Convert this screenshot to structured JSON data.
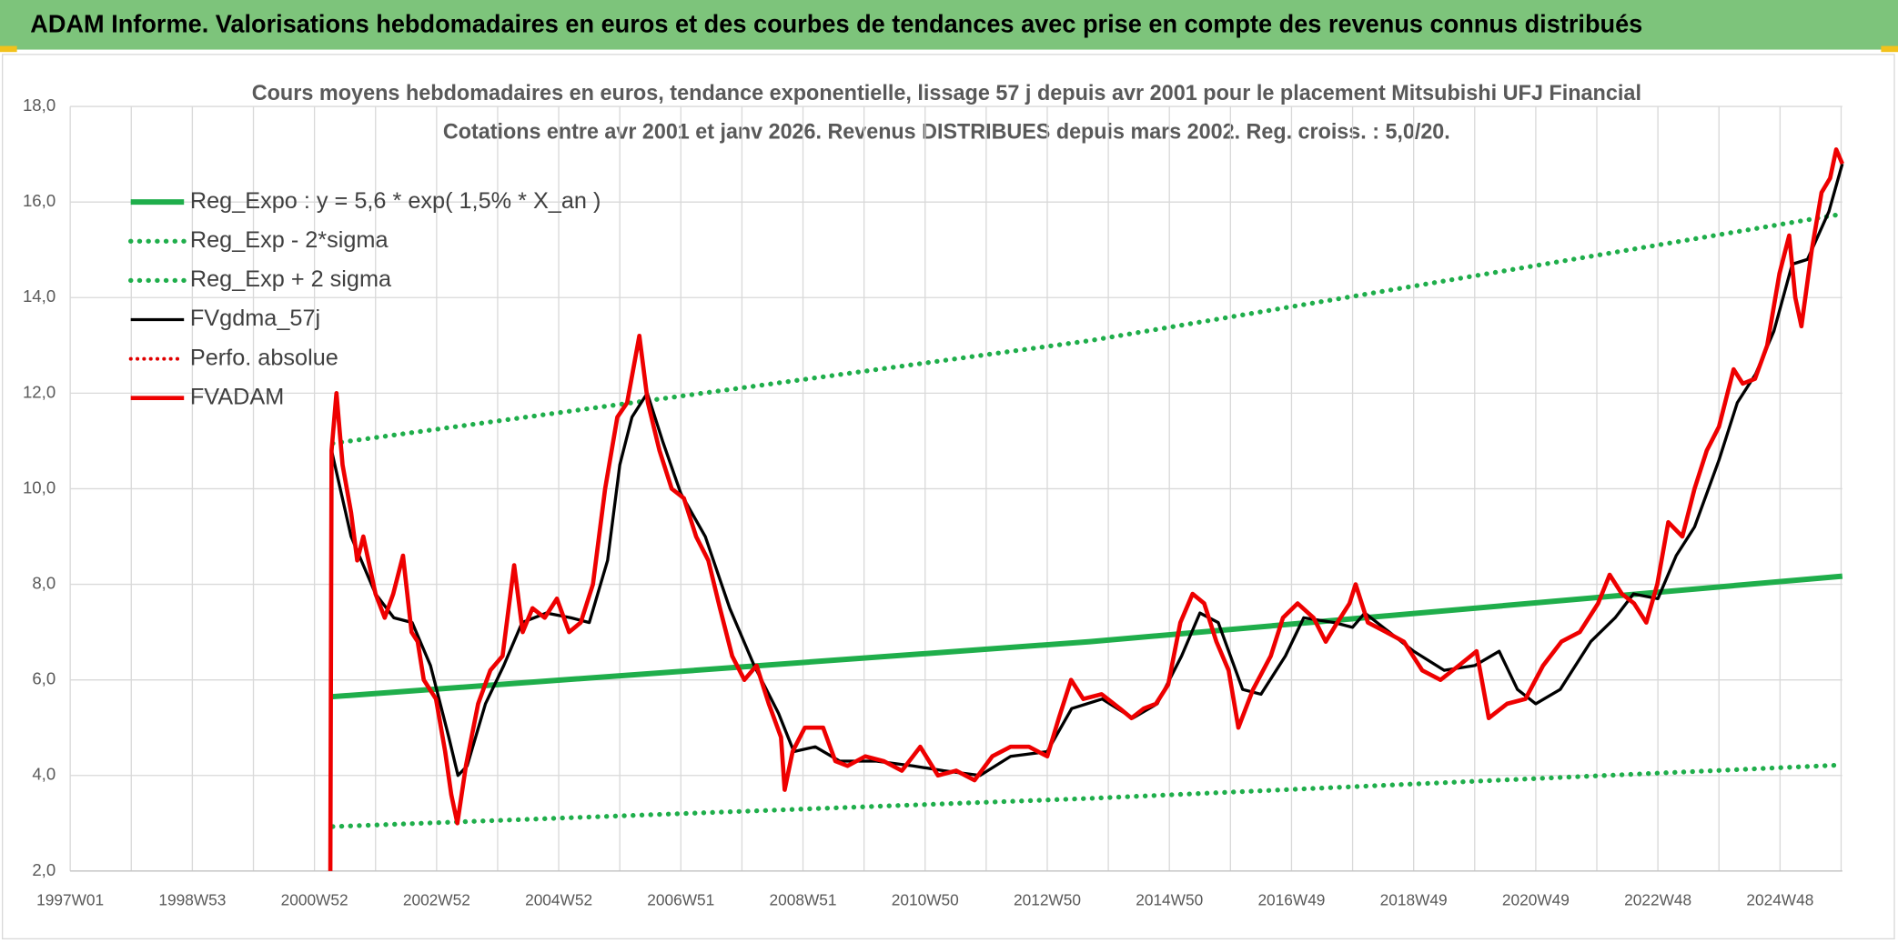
{
  "header": {
    "title": "ADAM Informe. Valorisations hebdomadaires en euros et des courbes de tendances avec prise en compte des revenus connus distribués"
  },
  "chart_data": {
    "type": "line",
    "title": "Cours moyens hebdomadaires en euros, tendance exponentielle, lissage 57 j depuis avr 2001 pour le placement Mitsubishi UFJ Financial",
    "subtitle": "Cotations entre avr 2001 et janv 2026. Revenus DISTRIBUES depuis mars 2002. Reg. croiss. : 5,0/20.",
    "xlim": [
      1997,
      2026.02
    ],
    "xticks": [
      {
        "value": 1997,
        "label": "1997W01"
      },
      {
        "value": 1998,
        "label": null
      },
      {
        "value": 1999,
        "label": "1998W53"
      },
      {
        "value": 2000,
        "label": null
      },
      {
        "value": 2001,
        "label": "2000W52"
      },
      {
        "value": 2002,
        "label": null
      },
      {
        "value": 2003,
        "label": "2002W52"
      },
      {
        "value": 2004,
        "label": null
      },
      {
        "value": 2005,
        "label": "2004W52"
      },
      {
        "value": 2006,
        "label": null
      },
      {
        "value": 2007,
        "label": "2006W51"
      },
      {
        "value": 2008,
        "label": null
      },
      {
        "value": 2009,
        "label": "2008W51"
      },
      {
        "value": 2010,
        "label": null
      },
      {
        "value": 2011,
        "label": "2010W50"
      },
      {
        "value": 2012,
        "label": null
      },
      {
        "value": 2013,
        "label": "2012W50"
      },
      {
        "value": 2014,
        "label": null
      },
      {
        "value": 2015,
        "label": "2014W50"
      },
      {
        "value": 2016,
        "label": null
      },
      {
        "value": 2017,
        "label": "2016W49"
      },
      {
        "value": 2018,
        "label": null
      },
      {
        "value": 2019,
        "label": "2018W49"
      },
      {
        "value": 2020,
        "label": null
      },
      {
        "value": 2021,
        "label": "2020W49"
      },
      {
        "value": 2022,
        "label": null
      },
      {
        "value": 2023,
        "label": "2022W48"
      },
      {
        "value": 2024,
        "label": null
      },
      {
        "value": 2025,
        "label": "2024W48"
      },
      {
        "value": 2026,
        "label": null
      }
    ],
    "ylim": [
      2,
      18
    ],
    "yticks": [
      {
        "value": 2,
        "label": "2,0"
      },
      {
        "value": 4,
        "label": "4,0"
      },
      {
        "value": 6,
        "label": "6,0"
      },
      {
        "value": 8,
        "label": "8,0"
      },
      {
        "value": 10,
        "label": "10,0"
      },
      {
        "value": 12,
        "label": "12,0"
      },
      {
        "value": 14,
        "label": "14,0"
      },
      {
        "value": 16,
        "label": "16,0"
      },
      {
        "value": 18,
        "label": "18,0"
      }
    ],
    "grid": true,
    "legend": "upper left",
    "series": [
      {
        "name": "Reg_Expo : y = 5,6 * exp( 1,5% *  X_an )",
        "color": "#1fae4b",
        "style": "solid",
        "width": 4.5,
        "x": [
          2001.3,
          2013.7,
          2026.02
        ],
        "values": [
          5.65,
          6.8,
          8.17
        ]
      },
      {
        "name": "Reg_Exp - 2*sigma",
        "color": "#1fae4b",
        "style": "dotted",
        "width": 4,
        "x": [
          2001.3,
          2013.7,
          2026.02
        ],
        "values": [
          2.93,
          3.52,
          4.22
        ]
      },
      {
        "name": "Reg_Exp + 2 sigma",
        "color": "#1fae4b",
        "style": "dotted",
        "width": 4,
        "x": [
          2001.3,
          2013.7,
          2026.02
        ],
        "values": [
          10.95,
          13.1,
          15.75
        ]
      },
      {
        "name": "FVgdma_57j",
        "color": "#000000",
        "style": "solid",
        "width": 2.5,
        "x": [
          2001.28,
          2001.6,
          2002.0,
          2002.3,
          2002.6,
          2002.9,
          2003.2,
          2003.35,
          2003.5,
          2003.8,
          2004.1,
          2004.4,
          2004.8,
          2005.2,
          2005.5,
          2005.8,
          2006.0,
          2006.2,
          2006.45,
          2006.7,
          2007.0,
          2007.4,
          2007.8,
          2008.2,
          2008.6,
          2008.85,
          2009.2,
          2009.6,
          2010.2,
          2010.8,
          2011.3,
          2011.9,
          2012.4,
          2013.0,
          2013.4,
          2013.9,
          2014.4,
          2014.8,
          2015.2,
          2015.5,
          2015.8,
          2016.2,
          2016.5,
          2016.9,
          2017.2,
          2017.7,
          2018.0,
          2018.2,
          2018.6,
          2019.0,
          2019.5,
          2020.0,
          2020.4,
          2020.7,
          2021.0,
          2021.4,
          2021.9,
          2022.3,
          2022.6,
          2023.0,
          2023.3,
          2023.6,
          2024.0,
          2024.3,
          2024.6,
          2024.9,
          2025.2,
          2025.45,
          2025.8,
          2026.02
        ],
        "values": [
          10.8,
          9.0,
          7.8,
          7.3,
          7.2,
          6.3,
          4.8,
          4.0,
          4.2,
          5.5,
          6.3,
          7.2,
          7.4,
          7.3,
          7.2,
          8.5,
          10.5,
          11.5,
          12.0,
          11.0,
          9.9,
          9.0,
          7.5,
          6.3,
          5.3,
          4.5,
          4.6,
          4.3,
          4.3,
          4.2,
          4.1,
          4.0,
          4.4,
          4.5,
          5.4,
          5.6,
          5.2,
          5.5,
          6.5,
          7.4,
          7.2,
          5.8,
          5.7,
          6.5,
          7.3,
          7.2,
          7.1,
          7.4,
          7.0,
          6.6,
          6.2,
          6.3,
          6.6,
          5.8,
          5.5,
          5.8,
          6.8,
          7.3,
          7.8,
          7.7,
          8.6,
          9.2,
          10.6,
          11.8,
          12.4,
          13.3,
          14.7,
          14.8,
          15.8,
          16.8
        ]
      },
      {
        "name": "Perfo. absolue",
        "color": "#e00000",
        "style": "dotted",
        "width": 3,
        "x": [],
        "values": []
      },
      {
        "name": "FVADAM",
        "color": "#ee0000",
        "style": "solid",
        "width": 3.5,
        "x": [
          2001.26,
          2001.28,
          2001.36,
          2001.46,
          2001.6,
          2001.7,
          2001.8,
          2002.0,
          2002.15,
          2002.29,
          2002.45,
          2002.59,
          2002.69,
          2002.79,
          2002.99,
          2003.14,
          2003.24,
          2003.34,
          2003.48,
          2003.68,
          2003.88,
          2004.08,
          2004.27,
          2004.41,
          2004.57,
          2004.77,
          2004.97,
          2005.17,
          2005.36,
          2005.56,
          2005.76,
          2005.96,
          2006.12,
          2006.32,
          2006.46,
          2006.65,
          2006.85,
          2007.05,
          2007.25,
          2007.45,
          2007.64,
          2007.84,
          2008.04,
          2008.24,
          2008.44,
          2008.64,
          2008.7,
          2008.83,
          2009.03,
          2009.33,
          2009.53,
          2009.73,
          2010.02,
          2010.32,
          2010.62,
          2010.92,
          2011.21,
          2011.51,
          2011.81,
          2012.1,
          2012.4,
          2012.7,
          2013.0,
          2013.19,
          2013.39,
          2013.59,
          2013.89,
          2014.19,
          2014.38,
          2014.58,
          2014.78,
          2014.98,
          2015.18,
          2015.38,
          2015.57,
          2015.77,
          2015.97,
          2016.13,
          2016.37,
          2016.66,
          2016.86,
          2017.1,
          2017.36,
          2017.56,
          2017.75,
          2017.95,
          2018.05,
          2018.25,
          2018.55,
          2018.84,
          2019.14,
          2019.44,
          2019.74,
          2020.03,
          2020.23,
          2020.53,
          2020.83,
          2021.12,
          2021.42,
          2021.72,
          2022.02,
          2022.21,
          2022.41,
          2022.61,
          2022.81,
          2022.99,
          2023.17,
          2023.4,
          2023.6,
          2023.8,
          2024.0,
          2024.24,
          2024.39,
          2024.59,
          2024.79,
          2024.99,
          2025.15,
          2025.25,
          2025.35,
          2025.52,
          2025.68,
          2025.82,
          2025.92,
          2026.02
        ],
        "values": [
          2.0,
          10.8,
          12.0,
          10.5,
          9.5,
          8.5,
          9.0,
          7.8,
          7.3,
          7.8,
          8.6,
          7.0,
          6.8,
          6.0,
          5.6,
          4.5,
          3.6,
          3.0,
          4.2,
          5.5,
          6.2,
          6.5,
          8.4,
          7.0,
          7.5,
          7.3,
          7.7,
          7.0,
          7.2,
          8.0,
          10.0,
          11.5,
          11.8,
          13.2,
          11.8,
          10.8,
          10.0,
          9.8,
          9.0,
          8.5,
          7.5,
          6.5,
          6.0,
          6.3,
          5.5,
          4.8,
          3.7,
          4.5,
          5.0,
          5.0,
          4.3,
          4.2,
          4.4,
          4.3,
          4.1,
          4.6,
          4.0,
          4.1,
          3.9,
          4.4,
          4.6,
          4.6,
          4.4,
          5.2,
          6.0,
          5.6,
          5.7,
          5.4,
          5.2,
          5.4,
          5.5,
          5.9,
          7.2,
          7.8,
          7.6,
          6.8,
          6.2,
          5.0,
          5.8,
          6.5,
          7.3,
          7.6,
          7.3,
          6.8,
          7.2,
          7.6,
          8.0,
          7.2,
          7.0,
          6.8,
          6.2,
          6.0,
          6.3,
          6.6,
          5.2,
          5.5,
          5.6,
          6.3,
          6.8,
          7.0,
          7.6,
          8.2,
          7.8,
          7.6,
          7.2,
          8.0,
          9.3,
          9.0,
          10.0,
          10.8,
          11.3,
          12.5,
          12.2,
          12.3,
          13.0,
          14.5,
          15.3,
          14.0,
          13.4,
          15.0,
          16.2,
          16.5,
          17.1,
          16.8
        ]
      }
    ]
  }
}
